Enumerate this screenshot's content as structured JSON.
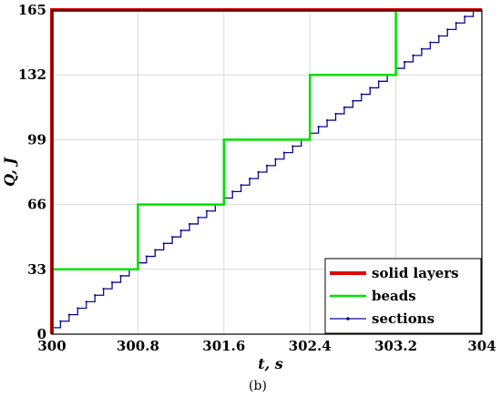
{
  "chart_data": {
    "type": "line",
    "xlabel": "t, s",
    "ylabel": "Q, J",
    "caption": "(b)",
    "xlim": [
      300,
      304
    ],
    "ylim": [
      0,
      165
    ],
    "xticks": [
      "300",
      "300.8",
      "301.6",
      "302.4",
      "303.2",
      "304"
    ],
    "xtick_values": [
      300,
      300.8,
      301.6,
      302.4,
      303.2,
      304
    ],
    "yticks": [
      "0",
      "33",
      "66",
      "99",
      "132",
      "165"
    ],
    "ytick_values": [
      0,
      33,
      66,
      99,
      132,
      165
    ],
    "grid": true,
    "legend_position": "bottom-right",
    "series": [
      {
        "name": "solid layers",
        "color": "#e00000",
        "style": "step",
        "x": [
          300,
          300,
          304
        ],
        "y": [
          0,
          165,
          165
        ]
      },
      {
        "name": "beads",
        "color": "#00e000",
        "style": "step",
        "x": [
          300,
          300,
          300.8,
          300.8,
          301.6,
          301.6,
          302.4,
          302.4,
          303.2,
          303.2,
          304
        ],
        "y": [
          0,
          33,
          33,
          66,
          66,
          99,
          99,
          132,
          132,
          165,
          165
        ]
      },
      {
        "name": "sections",
        "color": "#0a0a8c",
        "style": "staircase",
        "x_start": 300,
        "x_end": 304,
        "y_start": 0,
        "y_end": 165,
        "steps": 50
      }
    ]
  }
}
